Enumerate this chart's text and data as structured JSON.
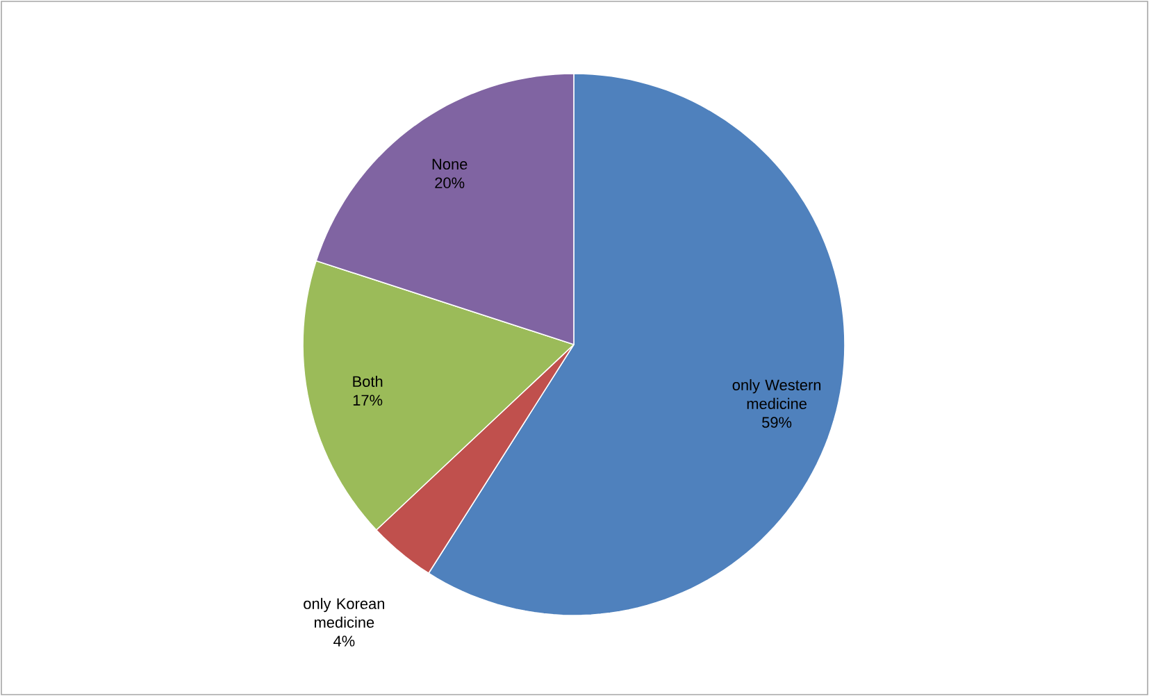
{
  "chart_data": {
    "type": "pie",
    "categories": [
      "only Western medicine",
      "only Korean medicine",
      "Both",
      "None"
    ],
    "values": [
      59,
      4,
      17,
      20
    ],
    "colors": [
      "#4f81bd",
      "#c0504d",
      "#9bbb59",
      "#8064a2"
    ],
    "value_labels": [
      "59%",
      "4%",
      "17%",
      "20%"
    ]
  }
}
